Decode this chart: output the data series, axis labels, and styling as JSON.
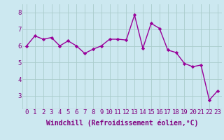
{
  "x": [
    0,
    1,
    2,
    3,
    4,
    5,
    6,
    7,
    8,
    9,
    10,
    11,
    12,
    13,
    14,
    15,
    16,
    17,
    18,
    19,
    20,
    21,
    22,
    23
  ],
  "y": [
    6.0,
    6.6,
    6.4,
    6.5,
    6.0,
    6.3,
    6.0,
    5.55,
    5.8,
    6.0,
    6.4,
    6.4,
    6.35,
    7.85,
    5.85,
    7.35,
    7.05,
    5.75,
    5.6,
    4.95,
    4.75,
    4.85,
    2.75,
    3.3
  ],
  "line_color": "#990099",
  "marker": "D",
  "marker_size": 2.2,
  "bg_color": "#cce8f0",
  "grid_color": "#aacccc",
  "xlabel": "Windchill (Refroidissement éolien,°C)",
  "xlabel_color": "#800080",
  "tick_color": "#800080",
  "ylim": [
    2.2,
    8.5
  ],
  "xlim": [
    -0.5,
    23.5
  ],
  "yticks": [
    3,
    4,
    5,
    6,
    7,
    8
  ],
  "xticks": [
    0,
    1,
    2,
    3,
    4,
    5,
    6,
    7,
    8,
    9,
    10,
    11,
    12,
    13,
    14,
    15,
    16,
    17,
    18,
    19,
    20,
    21,
    22,
    23
  ],
  "tick_fontsize": 6.5,
  "xlabel_fontsize": 7.0,
  "linewidth": 1.0
}
